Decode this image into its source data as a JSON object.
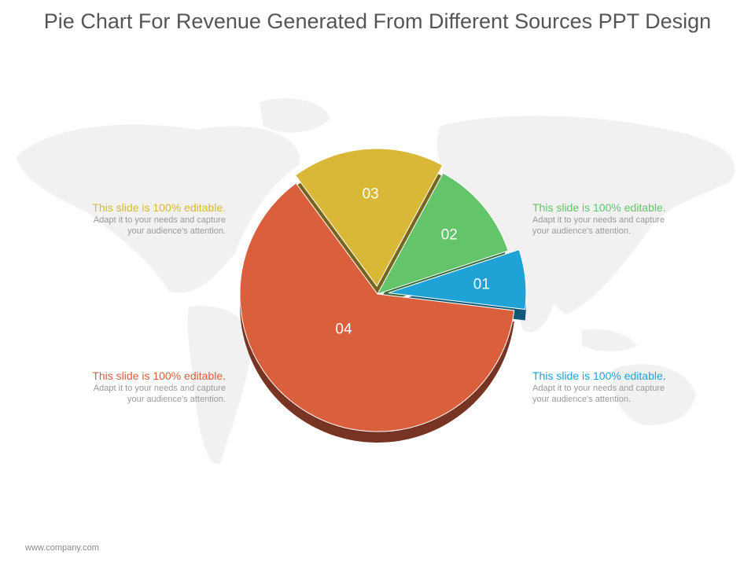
{
  "title": "Pie Chart For Revenue Generated From Different Sources PPT Design",
  "footer": "www.company.com",
  "chart_data": {
    "type": "pie",
    "slices": [
      {
        "label": "01",
        "value": 7,
        "color": "#1fa2d6"
      },
      {
        "label": "02",
        "value": 12,
        "color": "#63c46a"
      },
      {
        "label": "03",
        "value": 18,
        "color": "#d8b836"
      },
      {
        "label": "04",
        "value": 63,
        "color": "#d95f3d"
      }
    ]
  },
  "callouts": [
    {
      "id": "03",
      "heading": "This slide is 100% editable.",
      "body_line1": "Adapt it to your needs and capture",
      "body_line2": "your audience's attention.",
      "color": "#d8b836"
    },
    {
      "id": "02",
      "heading": "This slide is 100% editable.",
      "body_line1": "Adapt it to your needs and capture",
      "body_line2": "your audience's attention.",
      "color": "#63c46a"
    },
    {
      "id": "04",
      "heading": "This slide is 100% editable.",
      "body_line1": "Adapt it to your needs and capture",
      "body_line2": "your audience's attention.",
      "color": "#d95f3d"
    },
    {
      "id": "01",
      "heading": "This slide is 100% editable.",
      "body_line1": "Adapt it to your needs and capture",
      "body_line2": "your audience's attention.",
      "color": "#1fa2d6"
    }
  ]
}
